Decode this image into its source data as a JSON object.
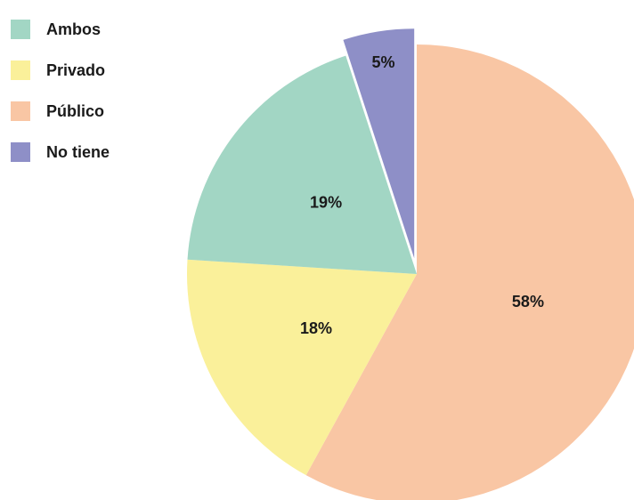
{
  "chart_data": {
    "type": "pie",
    "legend_position": "top-left",
    "slices": [
      {
        "name": "Público",
        "value": 58,
        "label": "58%",
        "color": "#F9C6A4",
        "exploded": false
      },
      {
        "name": "Privado",
        "value": 18,
        "label": "18%",
        "color": "#FAF09A",
        "exploded": false
      },
      {
        "name": "Ambos",
        "value": 19,
        "label": "19%",
        "color": "#A2D6C4",
        "exploded": false
      },
      {
        "name": "No tiene",
        "value": 5,
        "label": "5%",
        "color": "#8E8FC7",
        "exploded": true
      }
    ],
    "legend": [
      {
        "label": "Ambos",
        "color": "#A2D6C4"
      },
      {
        "label": "Privado",
        "color": "#FAF09A"
      },
      {
        "label": "Público",
        "color": "#F9C6A4"
      },
      {
        "label": "No tiene",
        "color": "#8E8FC7"
      }
    ]
  }
}
